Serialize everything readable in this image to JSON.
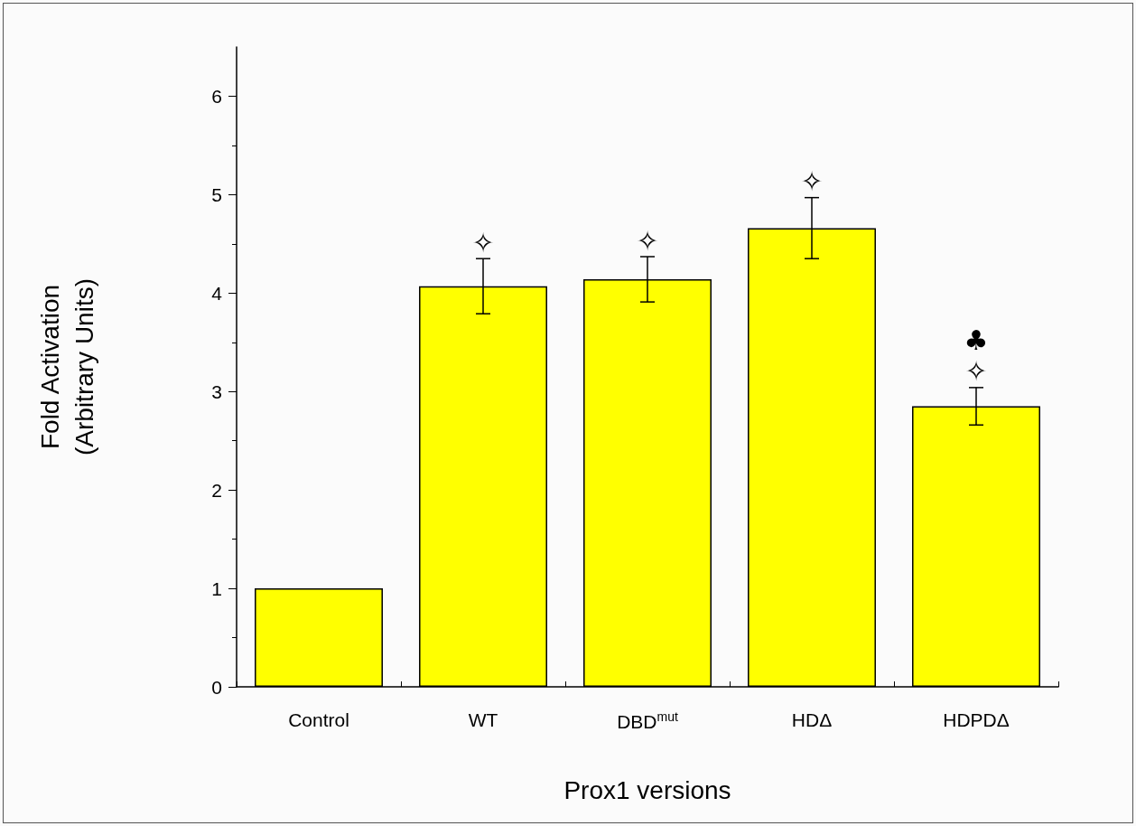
{
  "chart_data": {
    "type": "bar",
    "xlabel": "Prox1 versions",
    "ylabel": "Fold Activation\n(Arbitrary Units)",
    "categories": [
      "Control",
      "WT",
      "DBD$^{mut}$",
      "HDΔ",
      "HDPDΔ"
    ],
    "values": [
      1.0,
      4.07,
      4.14,
      4.66,
      2.85
    ],
    "errors": [
      null,
      0.28,
      0.23,
      0.31,
      0.19
    ],
    "color": "#ffff00",
    "ylim": [
      0,
      6.5
    ],
    "yticks": [
      0,
      1,
      2,
      3,
      4,
      5,
      6
    ],
    "grid": false,
    "annotations": [
      {
        "text": "✧",
        "x": "WT",
        "y": 4.07
      },
      {
        "text": "✧",
        "x": "DBD$^{mut}$",
        "y": 4.14
      },
      {
        "text": "✧",
        "x": "HDΔ",
        "y": 4.66
      },
      {
        "text": "✧",
        "x": "HDPDΔ",
        "y": 2.85
      },
      {
        "text": "♣",
        "x": "HDPDΔ",
        "y": 2.85
      }
    ]
  }
}
